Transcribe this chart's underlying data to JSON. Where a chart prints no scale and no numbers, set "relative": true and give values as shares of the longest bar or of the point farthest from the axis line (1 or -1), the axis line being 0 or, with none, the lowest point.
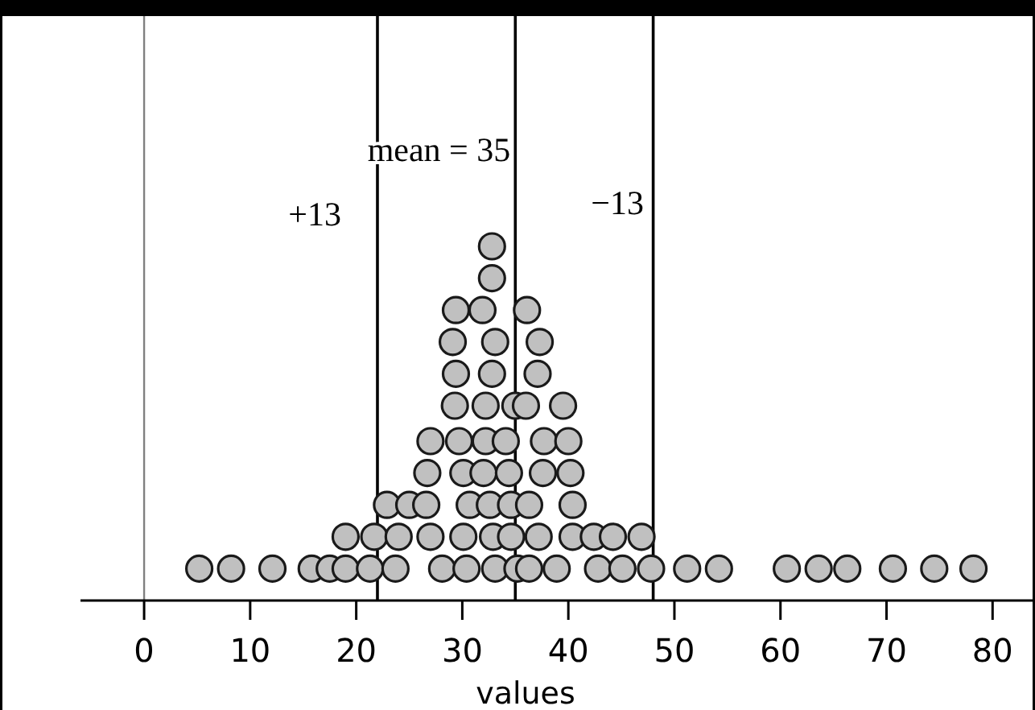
{
  "chart_data": {
    "type": "scatter",
    "relative": true,
    "xlabel": "values",
    "color": "#c0c0c0",
    "marker": "circle",
    "tick_labels": "x",
    "xlim": [
      -6,
      84
    ],
    "xticks": [
      0,
      10,
      20,
      30,
      40,
      50,
      60,
      70,
      80
    ],
    "x": [
      5.2,
      8.2,
      12.1,
      15.8,
      17.5,
      19.0,
      21.3,
      23.7,
      28.1,
      30.4,
      33.1,
      35.2,
      36.3,
      38.9,
      42.8,
      45.1,
      47.8,
      51.2,
      54.2,
      60.6,
      63.6,
      66.3,
      70.6,
      74.5,
      78.2,
      19.0,
      21.7,
      24.0,
      27.0,
      30.1,
      32.9,
      34.6,
      37.2,
      40.4,
      42.4,
      44.2,
      46.9,
      22.9,
      25.0,
      26.6,
      30.7,
      32.6,
      34.6,
      36.3,
      40.4,
      26.7,
      30.1,
      32.0,
      34.4,
      37.6,
      40.2,
      27.0,
      29.7,
      32.2,
      34.1,
      37.7,
      40.0,
      29.3,
      32.2,
      35.0,
      36.0,
      39.5,
      29.4,
      32.8,
      37.1,
      29.1,
      33.1,
      37.3,
      29.4,
      31.9,
      36.1,
      32.8,
      32.8
    ],
    "values": [
      0.09,
      0.09,
      0.09,
      0.09,
      0.09,
      0.09,
      0.09,
      0.09,
      0.09,
      0.09,
      0.09,
      0.09,
      0.09,
      0.09,
      0.09,
      0.09,
      0.09,
      0.09,
      0.09,
      0.09,
      0.09,
      0.09,
      0.09,
      0.09,
      0.09,
      0.18,
      0.18,
      0.18,
      0.18,
      0.18,
      0.18,
      0.18,
      0.18,
      0.18,
      0.18,
      0.18,
      0.18,
      0.27,
      0.27,
      0.27,
      0.27,
      0.27,
      0.27,
      0.27,
      0.27,
      0.36,
      0.36,
      0.36,
      0.36,
      0.36,
      0.36,
      0.45,
      0.45,
      0.45,
      0.45,
      0.45,
      0.45,
      0.55,
      0.55,
      0.55,
      0.55,
      0.55,
      0.64,
      0.64,
      0.64,
      0.73,
      0.73,
      0.73,
      0.82,
      0.82,
      0.82,
      0.91,
      1
    ],
    "ref_lines": [
      {
        "axis": "x",
        "value": 0,
        "color": "#808080"
      },
      {
        "axis": "x",
        "value": 22,
        "color": "#000000"
      },
      {
        "axis": "x",
        "value": 35,
        "label": "mean = 35",
        "color": "#000000"
      },
      {
        "axis": "x",
        "value": 48,
        "color": "#000000"
      }
    ],
    "annotations": [
      "+13",
      "−13"
    ]
  }
}
